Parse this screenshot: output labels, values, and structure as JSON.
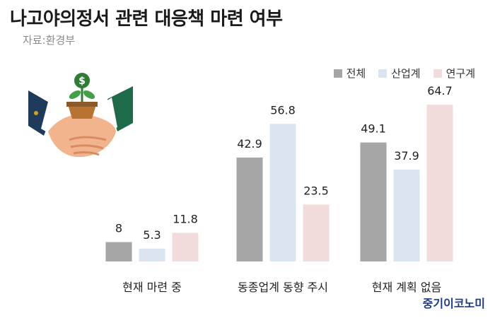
{
  "title": "나고야의정서 관련 대응책 마련 여부",
  "source": "자료:환경부",
  "brand": "중기이코노미",
  "illustration": {
    "icon": "handshake-money-plant-icon"
  },
  "colors": {
    "series_0": "#a6a6a6",
    "series_1": "#dbe5f1",
    "series_2": "#f2dcdb"
  },
  "chart_data": {
    "type": "bar",
    "title": "나고야의정서 관련 대응책 마련 여부",
    "xlabel": "",
    "ylabel": "",
    "categories": [
      "현재 마련 중",
      "동종업계 동향 주시",
      "현재 계획 없음"
    ],
    "series": [
      {
        "name": "전체",
        "values": [
          8,
          42.9,
          49.1
        ]
      },
      {
        "name": "산업계",
        "values": [
          5.3,
          56.8,
          37.9
        ]
      },
      {
        "name": "연구계",
        "values": [
          11.8,
          23.5,
          64.7
        ]
      }
    ],
    "value_labels": [
      [
        "8",
        "42.9",
        "49.1"
      ],
      [
        "5.3",
        "56.8",
        "37.9"
      ],
      [
        "11.8",
        "23.5",
        "64.7"
      ]
    ],
    "ylim": [
      0,
      70
    ],
    "grid": false,
    "legend": "top-right"
  }
}
